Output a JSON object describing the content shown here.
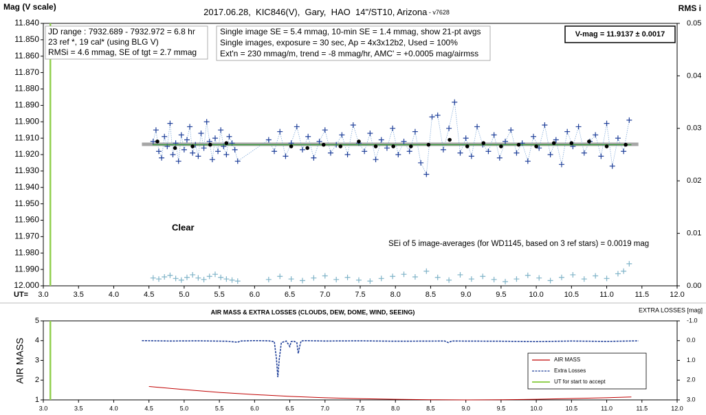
{
  "chart_data": [
    {
      "type": "scatter",
      "title": "2017.06.28,  KIC846(V),  Gary,  HAO  14\"/ST10, Arizona",
      "subtitle": " - v7628",
      "y_label": "Mag (V scale)",
      "y2_label": "RMS i",
      "x_label": "UT=",
      "info_left": [
        "JD range : 7932.689 - 7932.972 = 6.8 hr",
        "23 ref *, 19 cal* (using BLG V)",
        "RMSi = 4.6 mmag, SE of tgt = 2.7 mmag"
      ],
      "info_center": [
        "Single image SE = 5.4 mmag, 10-min SE = 1.4 mmag, show 21-pt avgs",
        "Single images, exposure = 30 sec, Ap = 4x3x12b2, Used = 100%",
        "Ext'n = 230 mmag/m, trend = -8 mmag/hr, AMC' = +0.0005 mag/airmss"
      ],
      "vmag_box": "V-mag = 11.9137 ± 0.0017",
      "sei_note": "SEi of 5 image-averages (for WD1145, based on 3 ref stars) = 0.0019 mag",
      "clear_label": "Clear",
      "xlim": [
        3.0,
        12.0
      ],
      "xticks": [
        {
          "value": 3,
          "label": "3.0"
        },
        3.5,
        {
          "value": 4,
          "label": "4.0"
        },
        4.5,
        {
          "value": 5,
          "label": "5.0"
        },
        5.5,
        {
          "value": 6,
          "label": "6.0"
        },
        6.5,
        {
          "value": 7,
          "label": "7.0"
        },
        7.5,
        {
          "value": 8,
          "label": "8.0"
        },
        8.5,
        {
          "value": 9,
          "label": "9.0"
        },
        9.5,
        {
          "value": 10,
          "label": "10.0"
        },
        10.5,
        {
          "value": 11,
          "label": "11.0"
        },
        11.5,
        {
          "value": 12,
          "label": "12.0"
        }
      ],
      "ylim": [
        11.84,
        12.0
      ],
      "y_reversed": true,
      "yticks": [
        {
          "value": 11.84,
          "label": "11.840"
        },
        {
          "value": 11.85,
          "label": "11.850"
        },
        {
          "value": 11.86,
          "label": "11.860"
        },
        {
          "value": 11.87,
          "label": "11.870"
        },
        {
          "value": 11.88,
          "label": "11.880"
        },
        {
          "value": 11.89,
          "label": "11.890"
        },
        {
          "value": 11.9,
          "label": "11.900"
        },
        {
          "value": 11.91,
          "label": "11.910"
        },
        {
          "value": 11.92,
          "label": "11.920"
        },
        {
          "value": 11.93,
          "label": "11.930"
        },
        {
          "value": 11.94,
          "label": "11.940"
        },
        {
          "value": 11.95,
          "label": "11.950"
        },
        {
          "value": 11.96,
          "label": "11.960"
        },
        {
          "value": 11.97,
          "label": "11.970"
        },
        {
          "value": 11.98,
          "label": "11.980"
        },
        {
          "value": 11.99,
          "label": "11.990"
        },
        {
          "value": 12.0,
          "label": "12.000"
        }
      ],
      "y2lim": [
        0,
        0.05
      ],
      "y2_reversed": false,
      "y2ticks": [
        {
          "value": 0,
          "label": "0.00"
        },
        0.01,
        0.02,
        0.03,
        0.04,
        0.05
      ],
      "start_line": {
        "value": 3.1,
        "color": "#92d050"
      },
      "series": [
        {
          "style": "line",
          "color": "#a6a6a6",
          "width": 5,
          "x": [
            4.4,
            11.45
          ],
          "values": [
            11.9137,
            11.9137
          ]
        },
        {
          "style": "plus",
          "connect": true,
          "color": "#1f3f99",
          "x": [
            4.56,
            4.6,
            4.64,
            4.68,
            4.72,
            4.76,
            4.8,
            4.84,
            4.88,
            4.92,
            4.96,
            5.0,
            5.04,
            5.08,
            5.12,
            5.16,
            5.2,
            5.24,
            5.28,
            5.32,
            5.36,
            5.4,
            5.44,
            5.48,
            5.52,
            5.56,
            5.6,
            5.64,
            5.68,
            5.72,
            5.76,
            6.2,
            6.28,
            6.36,
            6.44,
            6.52,
            6.6,
            6.68,
            6.76,
            6.84,
            6.92,
            7.0,
            7.08,
            7.16,
            7.24,
            7.32,
            7.4,
            7.48,
            7.56,
            7.64,
            7.72,
            7.8,
            7.88,
            7.96,
            8.04,
            8.12,
            8.2,
            8.28,
            8.36,
            8.44,
            8.52,
            8.6,
            8.68,
            8.76,
            8.84,
            8.92,
            9.0,
            9.08,
            9.16,
            9.24,
            9.32,
            9.4,
            9.48,
            9.56,
            9.64,
            9.72,
            9.8,
            9.88,
            9.96,
            10.04,
            10.12,
            10.2,
            10.28,
            10.36,
            10.44,
            10.52,
            10.6,
            10.68,
            10.76,
            10.84,
            10.92,
            11.0,
            11.08,
            11.16,
            11.24,
            11.32
          ],
          "values": [
            11.912,
            11.905,
            11.918,
            11.922,
            11.909,
            11.915,
            11.901,
            11.92,
            11.913,
            11.924,
            11.908,
            11.917,
            11.911,
            11.903,
            11.919,
            11.914,
            11.921,
            11.907,
            11.916,
            11.9,
            11.912,
            11.923,
            11.91,
            11.918,
            11.905,
            11.915,
            11.92,
            11.909,
            11.913,
            11.917,
            11.924,
            11.911,
            11.918,
            11.906,
            11.921,
            11.913,
            11.903,
            11.917,
            11.909,
            11.922,
            11.912,
            11.905,
            11.919,
            11.914,
            11.908,
            11.92,
            11.902,
            11.913,
            11.918,
            11.907,
            11.923,
            11.911,
            11.916,
            11.904,
            11.92,
            11.912,
            11.918,
            11.906,
            11.925,
            11.932,
            11.897,
            11.896,
            11.917,
            11.904,
            11.888,
            11.919,
            11.91,
            11.921,
            11.903,
            11.914,
            11.918,
            11.908,
            11.922,
            11.912,
            11.905,
            11.919,
            11.913,
            11.924,
            11.909,
            11.916,
            11.902,
            11.92,
            11.911,
            11.926,
            11.906,
            11.915,
            11.903,
            11.919,
            11.912,
            11.908,
            11.921,
            11.901,
            11.927,
            11.91,
            11.918,
            11.899
          ]
        },
        {
          "style": "line",
          "color": "#3a9a3a",
          "width": 1.5,
          "x": [
            4.55,
            11.35
          ],
          "values": [
            11.914,
            11.914
          ]
        },
        {
          "style": "dot",
          "color": "#000000",
          "x": [
            4.62,
            4.87,
            5.12,
            5.37,
            5.6,
            6.52,
            6.75,
            6.98,
            7.22,
            7.48,
            7.72,
            7.97,
            8.22,
            8.47,
            8.77,
            9.02,
            9.25,
            9.5,
            9.75,
            10.0,
            10.25,
            10.5,
            10.75,
            11.0,
            11.27
          ],
          "values": [
            11.912,
            11.916,
            11.915,
            11.914,
            11.913,
            11.915,
            11.916,
            11.914,
            11.915,
            11.912,
            11.915,
            11.915,
            11.915,
            11.914,
            11.911,
            11.915,
            11.913,
            11.915,
            11.914,
            11.915,
            11.913,
            11.913,
            11.912,
            11.915,
            11.914
          ]
        },
        {
          "style": "plus",
          "connect": false,
          "axis": "y2",
          "color": "#7fb3c8",
          "x": [
            4.56,
            4.64,
            4.72,
            4.8,
            4.88,
            4.96,
            5.04,
            5.12,
            5.2,
            5.28,
            5.36,
            5.44,
            5.52,
            5.6,
            5.68,
            5.76,
            6.2,
            6.36,
            6.52,
            6.68,
            6.84,
            7.0,
            7.16,
            7.32,
            7.48,
            7.64,
            7.8,
            7.96,
            8.12,
            8.28,
            8.44,
            8.6,
            8.76,
            8.92,
            9.08,
            9.24,
            9.4,
            9.56,
            9.72,
            9.88,
            10.04,
            10.2,
            10.36,
            10.52,
            10.68,
            10.84,
            11.0,
            11.16,
            11.24,
            11.32
          ],
          "values": [
            0.0015,
            0.0013,
            0.0017,
            0.002,
            0.0014,
            0.0011,
            0.0016,
            0.0021,
            0.0015,
            0.0012,
            0.0018,
            0.0022,
            0.0016,
            0.0013,
            0.0011,
            0.0009,
            0.0012,
            0.0018,
            0.0013,
            0.001,
            0.0015,
            0.0019,
            0.0012,
            0.0016,
            0.0011,
            0.0009,
            0.0014,
            0.0018,
            0.0022,
            0.0017,
            0.0028,
            0.0016,
            0.0011,
            0.0021,
            0.0013,
            0.0018,
            0.0012,
            0.0008,
            0.0013,
            0.002,
            0.0015,
            0.001,
            0.0016,
            0.0021,
            0.0013,
            0.0019,
            0.0014,
            0.0023,
            0.0028,
            0.0042
          ]
        }
      ]
    },
    {
      "type": "line",
      "title": "AIR MASS & EXTRA LOSSES (CLOUDS, DEW, DOME, WIND, SEEING)",
      "y_label": "AIR MASS",
      "y2_label": "EXTRA LOSSES [mag]",
      "xlim": [
        3.0,
        12.0
      ],
      "xticks": [
        {
          "value": 3,
          "label": "3.0"
        },
        3.5,
        {
          "value": 4,
          "label": "4.0"
        },
        4.5,
        {
          "value": 5,
          "label": "5.0"
        },
        5.5,
        {
          "value": 6,
          "label": "6.0"
        },
        6.5,
        {
          "value": 7,
          "label": "7.0"
        },
        7.5,
        {
          "value": 8,
          "label": "8.0"
        },
        8.5,
        {
          "value": 9,
          "label": "9.0"
        },
        9.5,
        {
          "value": 10,
          "label": "10.0"
        },
        10.5,
        {
          "value": 11,
          "label": "11.0"
        },
        11.5,
        {
          "value": 12,
          "label": "12.0"
        }
      ],
      "ylim": [
        1,
        5
      ],
      "y_reversed": false,
      "yticks": [
        1,
        2,
        3,
        4,
        5
      ],
      "y2lim": [
        -1,
        3
      ],
      "y2_reversed": true,
      "y2ticks": [
        {
          "value": -1,
          "label": "-1.0"
        },
        {
          "value": 0,
          "label": "0.0"
        },
        {
          "value": 1,
          "label": "1.0"
        },
        {
          "value": 2,
          "label": "2.0"
        },
        {
          "value": 3,
          "label": "3.0"
        }
      ],
      "legend": "lower right",
      "start_line": {
        "name": "UT for start to accept",
        "value": 3.1,
        "color": "#92d050"
      },
      "series": [
        {
          "name": "AIR MASS",
          "style": "line",
          "color": "#c00000",
          "width": 1,
          "x": [
            4.5,
            5.0,
            5.5,
            6.0,
            6.5,
            7.0,
            7.5,
            8.0,
            8.5,
            9.0,
            9.5,
            10.0,
            10.5,
            11.0,
            11.35
          ],
          "values": [
            1.68,
            1.52,
            1.38,
            1.27,
            1.18,
            1.11,
            1.06,
            1.03,
            1.01,
            1.0,
            1.01,
            1.03,
            1.07,
            1.11,
            1.15
          ]
        },
        {
          "name": "Extra Losses",
          "style": "line",
          "dashed": true,
          "axis": "y2",
          "color": "#1f3f99",
          "width": 1.6,
          "x": [
            4.4,
            4.8,
            5.2,
            5.6,
            5.76,
            5.8,
            6.0,
            6.2,
            6.28,
            6.31,
            6.33,
            6.35,
            6.38,
            6.45,
            6.5,
            6.52,
            6.55,
            6.6,
            6.62,
            6.64,
            6.66,
            6.7,
            7.0,
            7.5,
            8.0,
            8.7,
            8.75,
            8.8,
            9.5,
            10.0,
            10.5,
            11.0,
            11.45
          ],
          "values": [
            0.0,
            0.02,
            0.01,
            0.03,
            0.08,
            0.02,
            0.0,
            0.01,
            0.05,
            0.9,
            1.85,
            0.95,
            0.1,
            0.02,
            0.3,
            0.05,
            0.02,
            0.1,
            0.65,
            0.3,
            0.02,
            0.0,
            0.02,
            0.01,
            0.03,
            0.02,
            0.1,
            0.02,
            0.03,
            0.05,
            0.02,
            0.04,
            0.01
          ]
        }
      ]
    }
  ]
}
